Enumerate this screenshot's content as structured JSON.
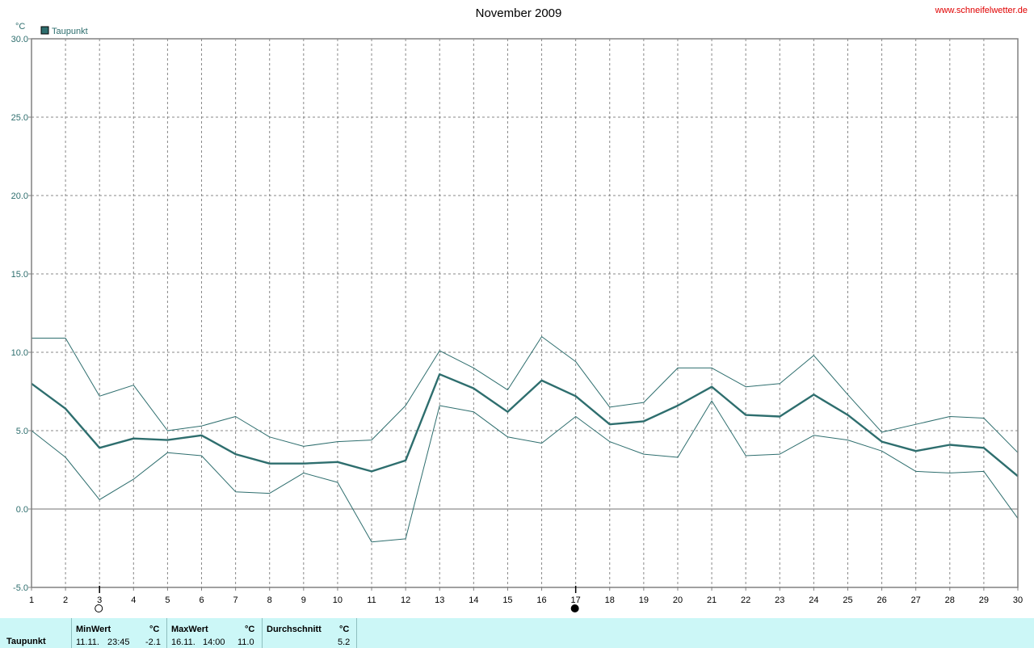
{
  "header": {
    "title": "November 2009",
    "site": "www.schneifelwetter.de",
    "unit": "°C"
  },
  "legend": {
    "label": "Taupunkt",
    "color": "#2e6e6e"
  },
  "chart_data": {
    "type": "line",
    "title": "November 2009",
    "ylabel": "°C",
    "xlabel": "",
    "ylim": [
      -5,
      30
    ],
    "xlim": [
      1,
      30
    ],
    "yticks": [
      "-5.0",
      "0.0",
      "5.0",
      "10.0",
      "15.0",
      "20.0",
      "25.0",
      "30.0"
    ],
    "ytick_values": [
      -5,
      0,
      5,
      10,
      15,
      20,
      25,
      30
    ],
    "x": [
      1,
      2,
      3,
      4,
      5,
      6,
      7,
      8,
      9,
      10,
      11,
      12,
      13,
      14,
      15,
      16,
      17,
      18,
      19,
      20,
      21,
      22,
      23,
      24,
      25,
      26,
      27,
      28,
      29,
      30
    ],
    "grid": true,
    "legend_position": "top-left",
    "series": [
      {
        "name": "Taupunkt",
        "role": "mean",
        "color": "#2e6e6e",
        "values": [
          8.0,
          6.4,
          3.9,
          4.5,
          4.4,
          4.7,
          3.5,
          2.9,
          2.9,
          3.0,
          2.4,
          3.1,
          8.6,
          7.7,
          6.2,
          8.2,
          7.2,
          5.4,
          5.6,
          6.6,
          7.8,
          6.0,
          5.9,
          7.3,
          6.0,
          4.3,
          3.7,
          4.1,
          3.9,
          2.1
        ]
      },
      {
        "role": "max",
        "color": "#2e6e6e",
        "values": [
          10.9,
          10.9,
          7.2,
          7.9,
          5.0,
          5.3,
          5.9,
          4.6,
          4.0,
          4.3,
          4.4,
          6.6,
          10.1,
          9.0,
          7.6,
          11.0,
          9.4,
          6.5,
          6.8,
          9.0,
          9.0,
          7.8,
          8.0,
          9.8,
          7.3,
          4.9,
          5.4,
          5.9,
          5.8,
          3.6
        ]
      },
      {
        "role": "min",
        "color": "#2e6e6e",
        "values": [
          5.0,
          3.3,
          0.6,
          1.9,
          3.6,
          3.4,
          1.1,
          1.0,
          2.3,
          1.7,
          -2.1,
          -1.9,
          6.6,
          6.2,
          4.6,
          4.2,
          5.9,
          4.3,
          3.5,
          3.3,
          6.9,
          3.4,
          3.5,
          4.7,
          4.4,
          3.7,
          2.4,
          2.3,
          2.4,
          -0.6
        ]
      }
    ],
    "moon_phases": [
      {
        "day": 3,
        "phase": "full-moon"
      },
      {
        "day": 17,
        "phase": "new-moon"
      }
    ]
  },
  "stats": {
    "row_label": "Taupunkt",
    "min": {
      "header": "MinWert",
      "unit": "°C",
      "date": "11.11.",
      "time": "23:45",
      "value": "-2.1"
    },
    "max": {
      "header": "MaxWert",
      "unit": "°C",
      "date": "16.11.",
      "time": "14:00",
      "value": "11.0"
    },
    "avg": {
      "header": "Durchschnitt",
      "unit": "°C",
      "value": "5.2"
    }
  }
}
